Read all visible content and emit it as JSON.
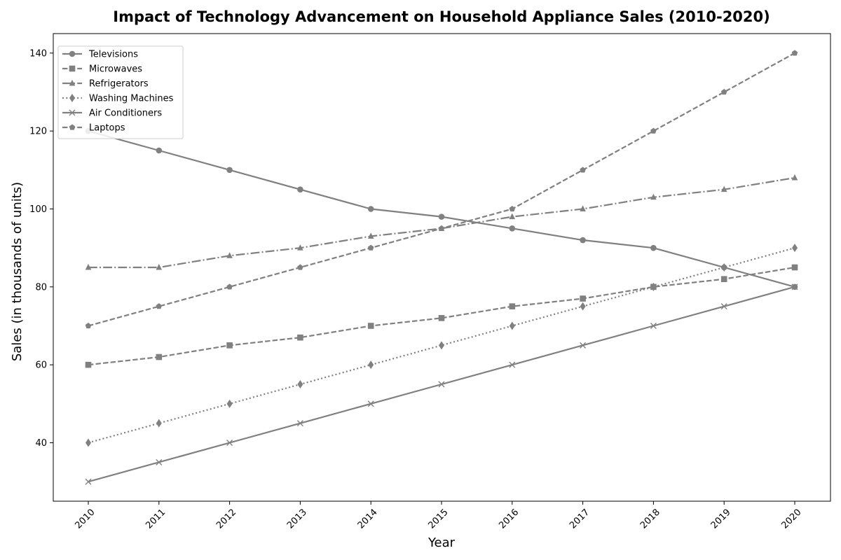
{
  "chart_data": {
    "type": "line",
    "title": "Impact of Technology Advancement on Household Appliance Sales (2010-2020)",
    "xlabel": "Year",
    "ylabel": "Sales (in thousands of units)",
    "x": [
      "2010",
      "2011",
      "2012",
      "2013",
      "2014",
      "2015",
      "2016",
      "2017",
      "2018",
      "2019",
      "2020"
    ],
    "ylim": [
      25,
      145
    ],
    "yticks": [
      40,
      60,
      80,
      100,
      120,
      140
    ],
    "grid": false,
    "legend_position": "top-left",
    "series": [
      {
        "name": "Televisions",
        "marker": "circle",
        "dash": "solid",
        "color": "#808080",
        "values": [
          120,
          115,
          110,
          105,
          100,
          98,
          95,
          92,
          90,
          85,
          80
        ]
      },
      {
        "name": "Microwaves",
        "marker": "square",
        "dash": "dashed",
        "color": "#808080",
        "values": [
          60,
          62,
          65,
          67,
          70,
          72,
          75,
          77,
          80,
          82,
          85
        ]
      },
      {
        "name": "Refrigerators",
        "marker": "triangle",
        "dash": "dashdot",
        "color": "#808080",
        "values": [
          85,
          85,
          88,
          90,
          93,
          95,
          98,
          100,
          103,
          105,
          108
        ]
      },
      {
        "name": "Washing Machines",
        "marker": "diamond",
        "dash": "dotted",
        "color": "#808080",
        "values": [
          40,
          45,
          50,
          55,
          60,
          65,
          70,
          75,
          80,
          85,
          90
        ]
      },
      {
        "name": "Air Conditioners",
        "marker": "x",
        "dash": "solid",
        "color": "#808080",
        "values": [
          30,
          35,
          40,
          45,
          50,
          55,
          60,
          65,
          70,
          75,
          80
        ]
      },
      {
        "name": "Laptops",
        "marker": "pentagon",
        "dash": "dashed",
        "color": "#808080",
        "values": [
          70,
          75,
          80,
          85,
          90,
          95,
          100,
          110,
          120,
          130,
          140
        ]
      }
    ]
  }
}
